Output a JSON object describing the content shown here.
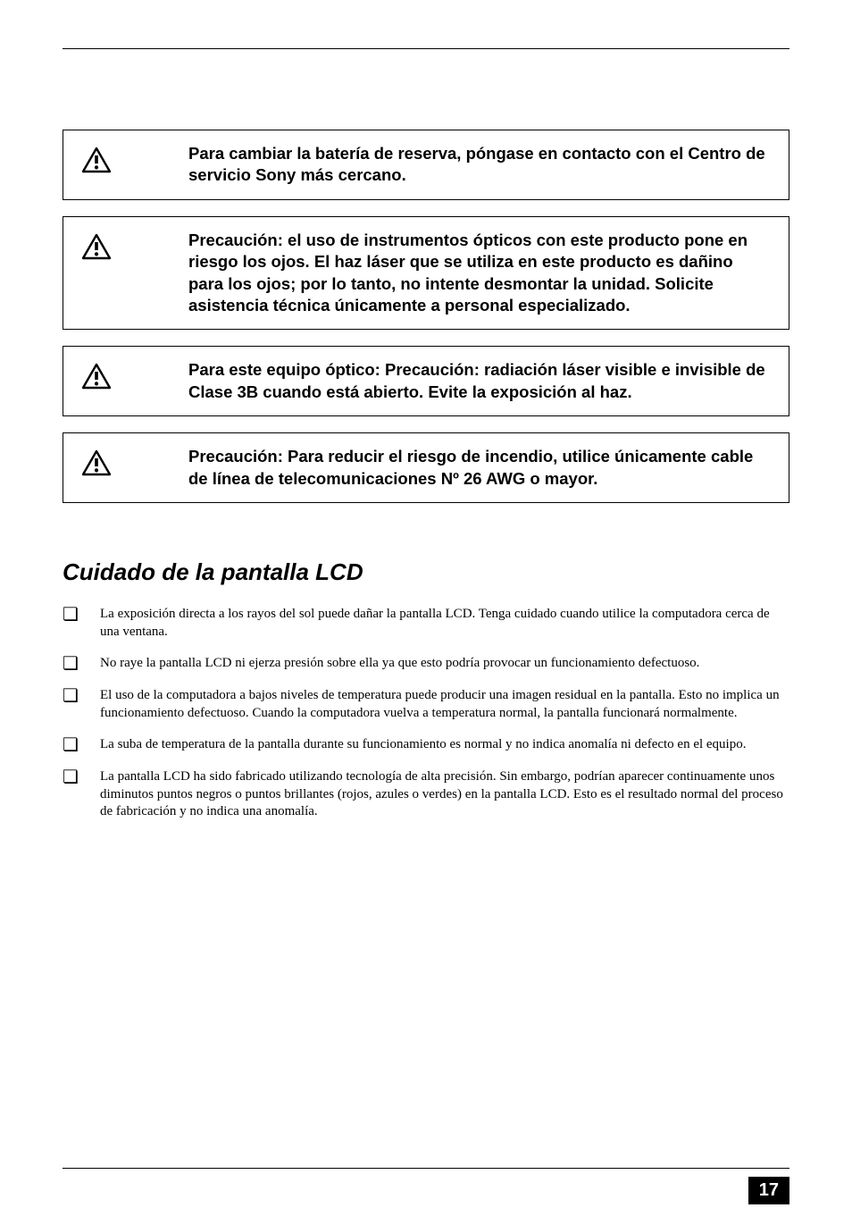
{
  "warnings": [
    {
      "text": "Para cambiar la batería de reserva, póngase en contacto con el Centro de servicio Sony más cercano."
    },
    {
      "text": "Precaución: el uso de instrumentos ópticos con este producto pone en riesgo los ojos. El haz láser que se utiliza en este producto es dañino para los ojos; por lo tanto, no intente desmontar la unidad. Solicite asistencia técnica únicamente a personal especializado."
    },
    {
      "text": "Para este equipo óptico: Precaución: radiación láser visible e invisible de Clase 3B cuando está abierto. Evite la exposición al haz."
    },
    {
      "text": "Precaución: Para reducir el riesgo de incendio, utilice únicamente cable de línea de telecomunicaciones Nº 26 AWG o mayor."
    }
  ],
  "section_title": "Cuidado de la pantalla LCD",
  "bullets": [
    "La exposición directa a los rayos del sol puede dañar la pantalla LCD. Tenga cuidado cuando utilice la computadora cerca de una ventana.",
    "No raye la pantalla LCD ni ejerza presión sobre ella ya que esto podría provocar un funcionamiento defectuoso.",
    "El uso de la computadora a bajos niveles de temperatura puede producir una imagen residual en la pantalla. Esto no implica un funcionamiento defectuoso. Cuando la computadora vuelva a temperatura normal, la pantalla funcionará normalmente.",
    "La suba de temperatura de la pantalla durante su funcionamiento es normal y no indica anomalía ni defecto en el equipo.",
    "La pantalla LCD ha sido fabricado utilizando tecnología de alta precisión. Sin embargo, podrían aparecer continuamente unos diminutos puntos negros o puntos brillantes (rojos, azules o verdes) en la pantalla LCD. Esto es el resultado normal del proceso de fabricación y no indica una anomalía."
  ],
  "page_number": "17",
  "bullet_glyph": "❏",
  "colors": {
    "text": "#000000",
    "bg": "#ffffff",
    "badge_bg": "#000000",
    "badge_fg": "#ffffff"
  }
}
